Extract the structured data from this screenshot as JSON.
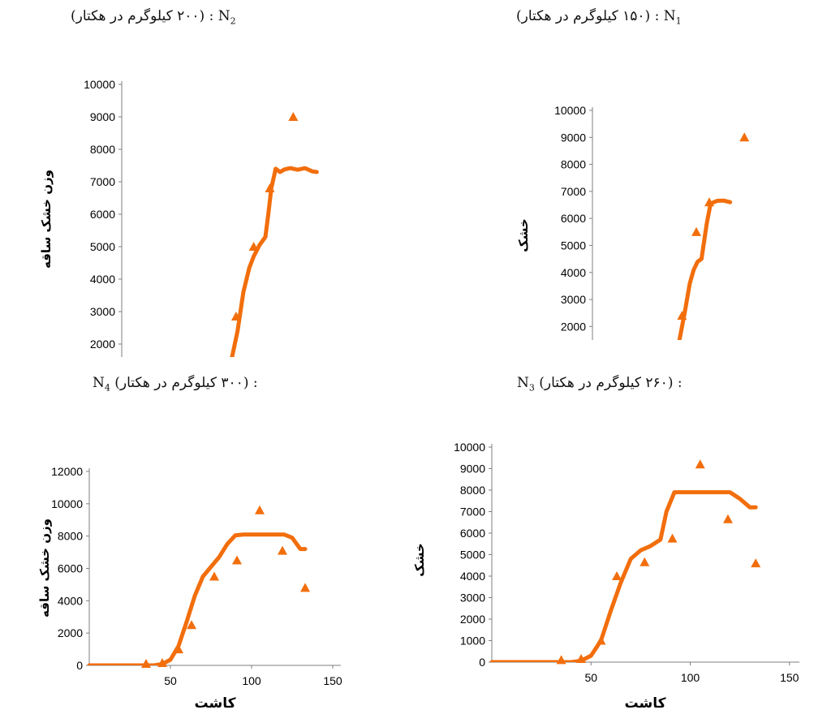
{
  "captions": {
    "n2": {
      "label": "N",
      "sub": "2",
      "sep": " : ",
      "text": "(۲۰۰ کیلوگرم در هکتار)"
    },
    "n1": {
      "label": "N",
      "sub": "1",
      "sep": " : ",
      "text": "(۱۵۰ کیلوگرم در هکتار)"
    },
    "n4": {
      "label": "N",
      "sub": "4",
      "sep": " :",
      "text": "(۳۰۰ کیلوگرم در هکتار)"
    },
    "n3": {
      "label": "N",
      "sub": "3",
      "sep": " :",
      "text": "(۲۶۰ کیلوگرم در هکتار)"
    }
  },
  "colors": {
    "series": "#f26e0c",
    "axis": "#7f7f7f",
    "text": "#000000"
  },
  "chart_data": [
    {
      "id": "n2",
      "type": "scatter",
      "ylabel": "وزن خشک ساقه",
      "xlabel": "",
      "ylim": [
        1600,
        10000
      ],
      "xlim": [
        0,
        155
      ],
      "yticks": [
        2000,
        3000,
        4000,
        5000,
        6000,
        7000,
        8000,
        9000,
        10000
      ],
      "xticks": [],
      "grid": false,
      "series": [
        {
          "kind": "line",
          "x": [
            75,
            79,
            83,
            87,
            90,
            94,
            98,
            100,
            102,
            105,
            108,
            111,
            115,
            120,
            125,
            130,
            133
          ],
          "y": [
            1550,
            2400,
            3600,
            4350,
            4700,
            5050,
            5300,
            6000,
            6800,
            7400,
            7300,
            7380,
            7420,
            7370,
            7420,
            7320,
            7300
          ]
        },
        {
          "kind": "markers",
          "marker": "triangle",
          "x": [
            78,
            90,
            101,
            117
          ],
          "y": [
            2850,
            5000,
            6800,
            9000
          ]
        }
      ]
    },
    {
      "id": "n1",
      "type": "scatter",
      "ylabel": "خشک",
      "xlabel": "",
      "ylim": [
        1500,
        10000
      ],
      "xlim": [
        0,
        155
      ],
      "yticks": [
        2000,
        3000,
        4000,
        5000,
        6000,
        7000,
        8000,
        9000,
        10000
      ],
      "xticks": [],
      "grid": false,
      "series": [
        {
          "kind": "line",
          "x": [
            67,
            71,
            75,
            78,
            81,
            84,
            88,
            91,
            96,
            101,
            106
          ],
          "y": [
            1500,
            2500,
            3600,
            4100,
            4400,
            4500,
            5800,
            6550,
            6650,
            6660,
            6600
          ]
        },
        {
          "kind": "markers",
          "marker": "triangle",
          "x": [
            69,
            80,
            90,
            117
          ],
          "y": [
            2400,
            5500,
            6600,
            9000
          ]
        }
      ]
    },
    {
      "id": "n4",
      "type": "scatter",
      "ylabel": "وزن خشک ساقه",
      "xlabel": "کاشت",
      "ylim": [
        0,
        12000
      ],
      "xlim": [
        0,
        155
      ],
      "yticks": [
        0,
        2000,
        4000,
        6000,
        8000,
        10000,
        12000
      ],
      "xticks": [
        50,
        100,
        150
      ],
      "grid": false,
      "series": [
        {
          "kind": "line",
          "x": [
            0,
            10,
            20,
            30,
            40,
            45,
            50,
            55,
            60,
            65,
            70,
            75,
            80,
            85,
            90,
            95,
            100,
            105,
            110,
            115,
            120,
            125,
            130,
            133
          ],
          "y": [
            0,
            0,
            0,
            0,
            0,
            80,
            350,
            1200,
            2700,
            4300,
            5500,
            6100,
            6700,
            7500,
            8050,
            8100,
            8100,
            8100,
            8100,
            8100,
            8100,
            7900,
            7200,
            7200
          ]
        },
        {
          "kind": "markers",
          "marker": "triangle",
          "x": [
            35,
            45,
            55,
            63,
            77,
            91,
            105,
            119,
            133
          ],
          "y": [
            100,
            150,
            1000,
            2500,
            5500,
            6500,
            9600,
            7100,
            4800
          ]
        }
      ]
    },
    {
      "id": "n3",
      "type": "scatter",
      "ylabel": "خشک",
      "xlabel": "کاشت",
      "ylim": [
        0,
        10000
      ],
      "xlim": [
        0,
        155
      ],
      "yticks": [
        0,
        1000,
        2000,
        3000,
        4000,
        5000,
        6000,
        7000,
        8000,
        9000,
        10000
      ],
      "xticks": [
        50,
        100,
        150
      ],
      "grid": false,
      "series": [
        {
          "kind": "line",
          "x": [
            0,
            10,
            20,
            30,
            40,
            45,
            50,
            55,
            60,
            65,
            70,
            75,
            80,
            85,
            88,
            92,
            95,
            100,
            110,
            120,
            125,
            130,
            133
          ],
          "y": [
            0,
            0,
            0,
            0,
            0,
            60,
            300,
            1000,
            2400,
            3700,
            4800,
            5200,
            5400,
            5700,
            7000,
            7900,
            7900,
            7900,
            7900,
            7900,
            7600,
            7200,
            7200
          ]
        },
        {
          "kind": "markers",
          "marker": "triangle",
          "x": [
            35,
            45,
            55,
            63,
            77,
            91,
            105,
            119,
            133
          ],
          "y": [
            100,
            150,
            1000,
            4000,
            4650,
            5750,
            9200,
            6650,
            4600
          ]
        }
      ]
    }
  ]
}
